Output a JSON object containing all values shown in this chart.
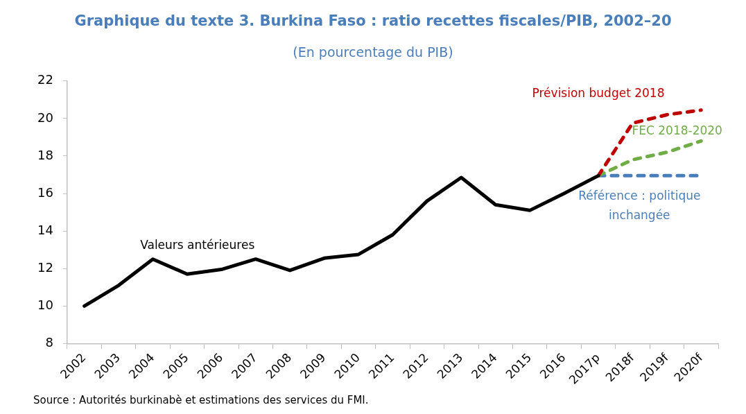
{
  "chart_data": {
    "type": "line",
    "title": "Graphique du texte 3. Burkina Faso : ratio recettes fiscales/PIB, 2002–20",
    "subtitle": "(En pourcentage du PIB)",
    "categories": [
      "2002",
      "2003",
      "2004",
      "2005",
      "2006",
      "2007",
      "2008",
      "2009",
      "2010",
      "2011",
      "2012",
      "2013",
      "2014",
      "2015",
      "2016",
      "2017p",
      "2018f",
      "2019f",
      "2020f"
    ],
    "series": [
      {
        "name": "Valeurs antérieures",
        "color": "#000000",
        "line_style": "solid",
        "values": [
          10.0,
          11.1,
          12.5,
          11.7,
          11.95,
          12.5,
          11.9,
          12.55,
          12.75,
          13.8,
          15.6,
          16.85,
          15.4,
          15.1,
          16.0,
          16.95,
          null,
          null,
          null
        ]
      },
      {
        "name": "Prévision budget 2018",
        "color": "#c00000",
        "line_style": "dashed",
        "values": [
          null,
          null,
          null,
          null,
          null,
          null,
          null,
          null,
          null,
          null,
          null,
          null,
          null,
          null,
          null,
          16.95,
          19.75,
          20.2,
          20.45
        ]
      },
      {
        "name": "FEC 2018-2020",
        "color": "#70ad47",
        "line_style": "dashed",
        "values": [
          null,
          null,
          null,
          null,
          null,
          null,
          null,
          null,
          null,
          null,
          null,
          null,
          null,
          null,
          null,
          16.95,
          17.8,
          18.2,
          18.8
        ]
      },
      {
        "name": "Référence : politique inchangée",
        "color": "#4a7ebb",
        "line_style": "dashed",
        "values": [
          null,
          null,
          null,
          null,
          null,
          null,
          null,
          null,
          null,
          null,
          null,
          null,
          null,
          null,
          null,
          16.95,
          16.95,
          16.95,
          16.95
        ]
      }
    ],
    "ylim": [
      8,
      22
    ],
    "yticks": [
      8,
      10,
      12,
      14,
      16,
      18,
      20,
      22
    ],
    "grid": false,
    "legend": false,
    "marker": "none",
    "annotations": [
      "Source : Autorités burkinabè et estimations des services du FMI."
    ]
  }
}
